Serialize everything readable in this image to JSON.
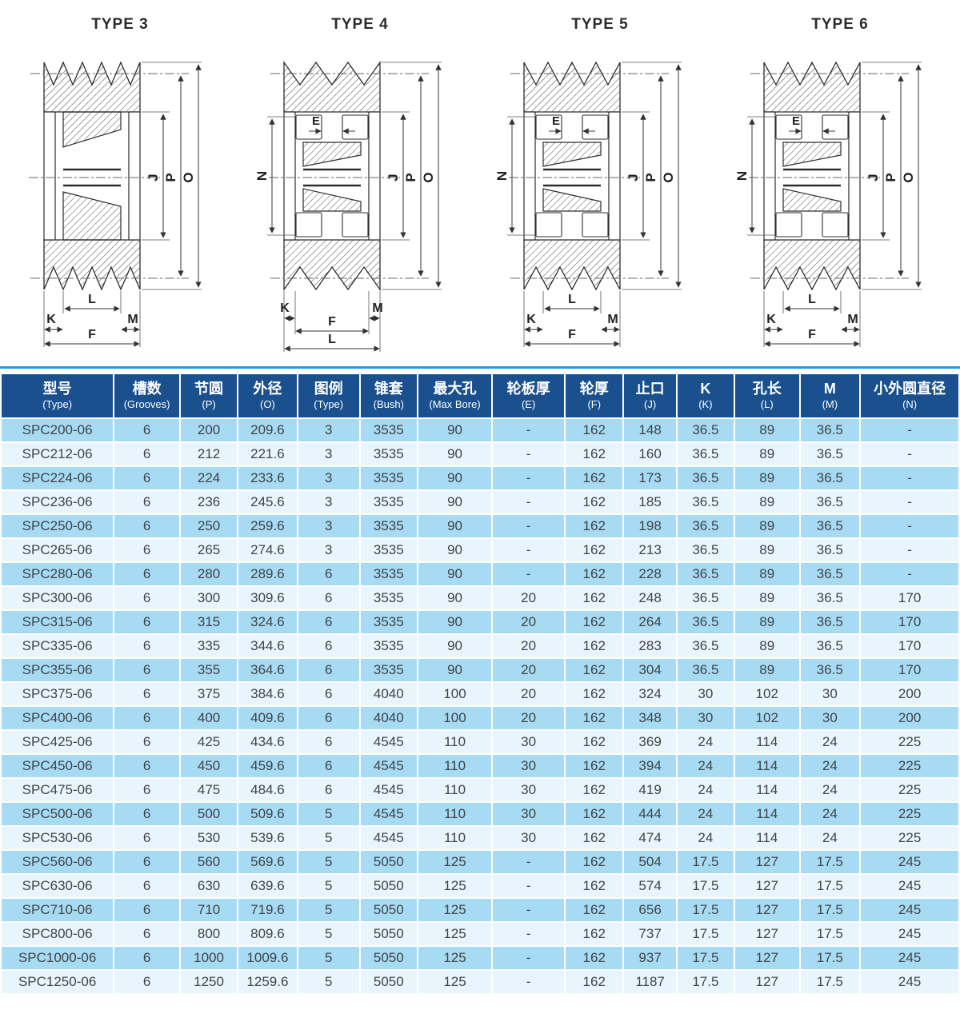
{
  "diagrams": [
    {
      "title": "TYPE 3",
      "grooves": 5,
      "show_e": false,
      "show_n": false,
      "bottom_style": "LKMF",
      "dim_labels": {
        "J": "J",
        "P": "P",
        "O": "O",
        "K": "K",
        "L": "L",
        "M": "M",
        "F": "F"
      }
    },
    {
      "title": "TYPE 4",
      "grooves": 3,
      "show_e": true,
      "show_n": true,
      "bottom_style": "KMFL",
      "dim_labels": {
        "E": "E",
        "N": "N",
        "J": "J",
        "P": "P",
        "O": "O",
        "K": "K",
        "L": "L",
        "M": "M",
        "F": "F"
      }
    },
    {
      "title": "TYPE 5",
      "grooves": 4,
      "show_e": true,
      "show_n": true,
      "bottom_style": "LKMF",
      "dim_labels": {
        "E": "E",
        "N": "N",
        "J": "J",
        "P": "P",
        "O": "O",
        "K": "K",
        "L": "L",
        "M": "M",
        "F": "F"
      }
    },
    {
      "title": "TYPE 6",
      "grooves": 4,
      "show_e": true,
      "show_n": true,
      "bottom_style": "LKMF",
      "dim_labels": {
        "E": "E",
        "N": "N",
        "J": "J",
        "P": "P",
        "O": "O",
        "K": "K",
        "L": "L",
        "M": "M",
        "F": "F"
      }
    }
  ],
  "table": {
    "headers": [
      {
        "zh": "型号",
        "en": "(Type)"
      },
      {
        "zh": "槽数",
        "en": "(Grooves)"
      },
      {
        "zh": "节圆",
        "en": "(P)"
      },
      {
        "zh": "外径",
        "en": "(O)"
      },
      {
        "zh": "图例",
        "en": "(Type)"
      },
      {
        "zh": "锥套",
        "en": "(Bush)"
      },
      {
        "zh": "最大孔",
        "en": "(Max Bore)"
      },
      {
        "zh": "轮板厚",
        "en": "(E)"
      },
      {
        "zh": "轮厚",
        "en": "(F)"
      },
      {
        "zh": "止口",
        "en": "(J)"
      },
      {
        "zh": "K",
        "en": "(K)"
      },
      {
        "zh": "孔长",
        "en": "(L)"
      },
      {
        "zh": "M",
        "en": "(M)"
      },
      {
        "zh": "小外圆直径",
        "en": "(N)"
      }
    ],
    "rows": [
      [
        "SPC200-06",
        "6",
        "200",
        "209.6",
        "3",
        "3535",
        "90",
        "-",
        "162",
        "148",
        "36.5",
        "89",
        "36.5",
        "-"
      ],
      [
        "SPC212-06",
        "6",
        "212",
        "221.6",
        "3",
        "3535",
        "90",
        "-",
        "162",
        "160",
        "36.5",
        "89",
        "36.5",
        "-"
      ],
      [
        "SPC224-06",
        "6",
        "224",
        "233.6",
        "3",
        "3535",
        "90",
        "-",
        "162",
        "173",
        "36.5",
        "89",
        "36.5",
        "-"
      ],
      [
        "SPC236-06",
        "6",
        "236",
        "245.6",
        "3",
        "3535",
        "90",
        "-",
        "162",
        "185",
        "36.5",
        "89",
        "36.5",
        "-"
      ],
      [
        "SPC250-06",
        "6",
        "250",
        "259.6",
        "3",
        "3535",
        "90",
        "-",
        "162",
        "198",
        "36.5",
        "89",
        "36.5",
        "-"
      ],
      [
        "SPC265-06",
        "6",
        "265",
        "274.6",
        "3",
        "3535",
        "90",
        "-",
        "162",
        "213",
        "36.5",
        "89",
        "36.5",
        "-"
      ],
      [
        "SPC280-06",
        "6",
        "280",
        "289.6",
        "6",
        "3535",
        "90",
        "-",
        "162",
        "228",
        "36.5",
        "89",
        "36.5",
        "-"
      ],
      [
        "SPC300-06",
        "6",
        "300",
        "309.6",
        "6",
        "3535",
        "90",
        "20",
        "162",
        "248",
        "36.5",
        "89",
        "36.5",
        "170"
      ],
      [
        "SPC315-06",
        "6",
        "315",
        "324.6",
        "6",
        "3535",
        "90",
        "20",
        "162",
        "264",
        "36.5",
        "89",
        "36.5",
        "170"
      ],
      [
        "SPC335-06",
        "6",
        "335",
        "344.6",
        "6",
        "3535",
        "90",
        "20",
        "162",
        "283",
        "36.5",
        "89",
        "36.5",
        "170"
      ],
      [
        "SPC355-06",
        "6",
        "355",
        "364.6",
        "6",
        "3535",
        "90",
        "20",
        "162",
        "304",
        "36.5",
        "89",
        "36.5",
        "170"
      ],
      [
        "SPC375-06",
        "6",
        "375",
        "384.6",
        "6",
        "4040",
        "100",
        "20",
        "162",
        "324",
        "30",
        "102",
        "30",
        "200"
      ],
      [
        "SPC400-06",
        "6",
        "400",
        "409.6",
        "6",
        "4040",
        "100",
        "20",
        "162",
        "348",
        "30",
        "102",
        "30",
        "200"
      ],
      [
        "SPC425-06",
        "6",
        "425",
        "434.6",
        "6",
        "4545",
        "110",
        "30",
        "162",
        "369",
        "24",
        "114",
        "24",
        "225"
      ],
      [
        "SPC450-06",
        "6",
        "450",
        "459.6",
        "6",
        "4545",
        "110",
        "30",
        "162",
        "394",
        "24",
        "114",
        "24",
        "225"
      ],
      [
        "SPC475-06",
        "6",
        "475",
        "484.6",
        "6",
        "4545",
        "110",
        "30",
        "162",
        "419",
        "24",
        "114",
        "24",
        "225"
      ],
      [
        "SPC500-06",
        "6",
        "500",
        "509.6",
        "5",
        "4545",
        "110",
        "30",
        "162",
        "444",
        "24",
        "114",
        "24",
        "225"
      ],
      [
        "SPC530-06",
        "6",
        "530",
        "539.6",
        "5",
        "4545",
        "110",
        "30",
        "162",
        "474",
        "24",
        "114",
        "24",
        "225"
      ],
      [
        "SPC560-06",
        "6",
        "560",
        "569.6",
        "5",
        "5050",
        "125",
        "-",
        "162",
        "504",
        "17.5",
        "127",
        "17.5",
        "245"
      ],
      [
        "SPC630-06",
        "6",
        "630",
        "639.6",
        "5",
        "5050",
        "125",
        "-",
        "162",
        "574",
        "17.5",
        "127",
        "17.5",
        "245"
      ],
      [
        "SPC710-06",
        "6",
        "710",
        "719.6",
        "5",
        "5050",
        "125",
        "-",
        "162",
        "656",
        "17.5",
        "127",
        "17.5",
        "245"
      ],
      [
        "SPC800-06",
        "6",
        "800",
        "809.6",
        "5",
        "5050",
        "125",
        "-",
        "162",
        "737",
        "17.5",
        "127",
        "17.5",
        "245"
      ],
      [
        "SPC1000-06",
        "6",
        "1000",
        "1009.6",
        "5",
        "5050",
        "125",
        "-",
        "162",
        "937",
        "17.5",
        "127",
        "17.5",
        "245"
      ],
      [
        "SPC1250-06",
        "6",
        "1250",
        "1259.6",
        "5",
        "5050",
        "125",
        "-",
        "162",
        "1187",
        "17.5",
        "127",
        "17.5",
        "245"
      ]
    ]
  },
  "colors": {
    "header_bg": "#1a508e",
    "header_text": "#ffffff",
    "row_dark": "#a7daf3",
    "row_light": "#e9f5fc",
    "top_rule": "#2a97d7",
    "cell_text": "#3f4346",
    "drawing_line": "#2d2d2d"
  }
}
